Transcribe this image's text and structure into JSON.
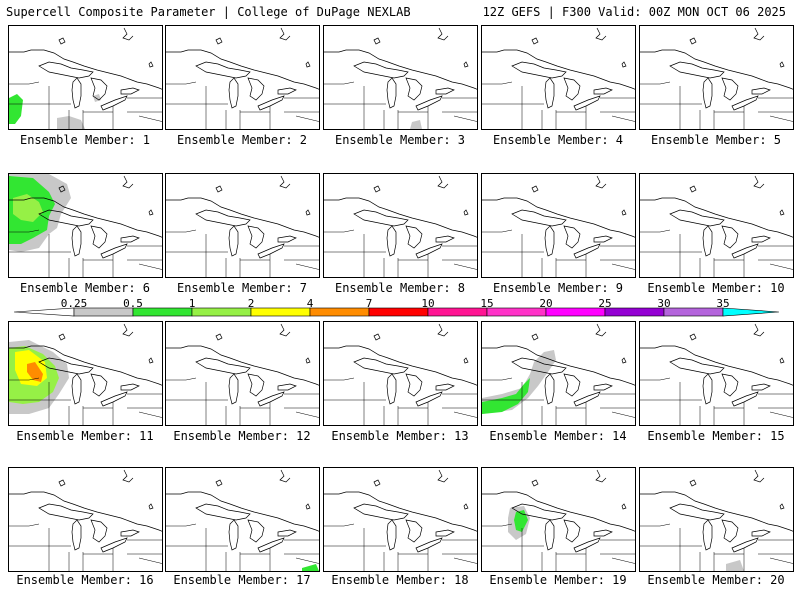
{
  "header": {
    "left": "Supercell Composite Parameter | College of DuPage NEXLAB",
    "right": "12Z GEFS | F300 Valid: 00Z MON OCT 06 2025"
  },
  "panels": [
    {
      "caption": "Ensemble Member: 1"
    },
    {
      "caption": "Ensemble Member: 2"
    },
    {
      "caption": "Ensemble Member: 3"
    },
    {
      "caption": "Ensemble Member: 4"
    },
    {
      "caption": "Ensemble Member: 5"
    },
    {
      "caption": "Ensemble Member: 6"
    },
    {
      "caption": "Ensemble Member: 7"
    },
    {
      "caption": "Ensemble Member: 8"
    },
    {
      "caption": "Ensemble Member: 9"
    },
    {
      "caption": "Ensemble Member: 10"
    },
    {
      "caption": "Ensemble Member: 11"
    },
    {
      "caption": "Ensemble Member: 12"
    },
    {
      "caption": "Ensemble Member: 13"
    },
    {
      "caption": "Ensemble Member: 14"
    },
    {
      "caption": "Ensemble Member: 15"
    },
    {
      "caption": "Ensemble Member: 16"
    },
    {
      "caption": "Ensemble Member: 17"
    },
    {
      "caption": "Ensemble Member: 18"
    },
    {
      "caption": "Ensemble Member: 19"
    },
    {
      "caption": "Ensemble Member: 20"
    }
  ],
  "legend": {
    "labels": [
      "0.25",
      "0.5",
      "1",
      "2",
      "4",
      "7",
      "10",
      "15",
      "20",
      "25",
      "30",
      "35"
    ],
    "colors": [
      "#c8c8c8",
      "#32e632",
      "#96f046",
      "#ffff00",
      "#ff8c00",
      "#ff0000",
      "#ff1493",
      "#ff32c8",
      "#ff00ff",
      "#9400d3",
      "#b464dc",
      "#00ffff"
    ]
  }
}
